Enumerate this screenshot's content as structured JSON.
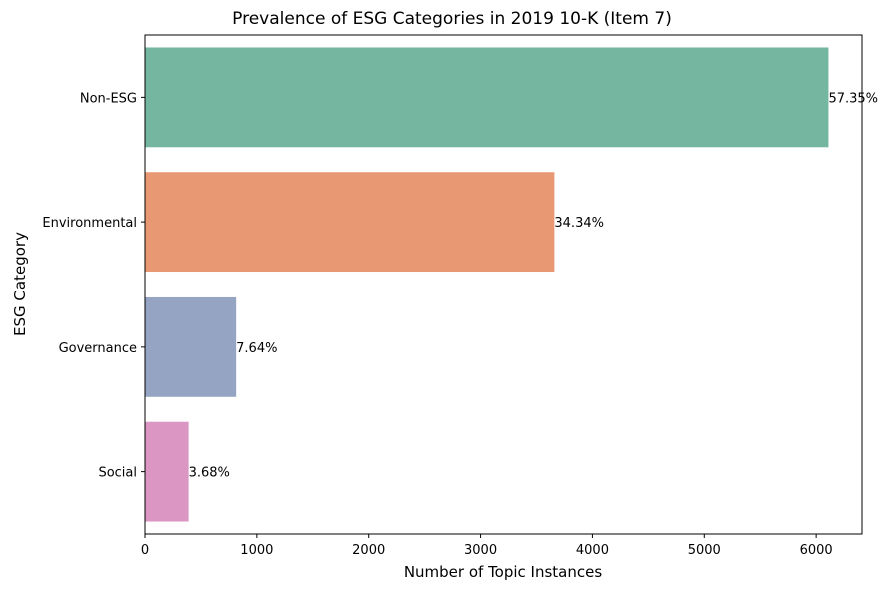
{
  "chart_data": {
    "type": "bar",
    "orientation": "horizontal",
    "title": "Prevalence of ESG Categories in 2019 10-K (Item 7)",
    "xlabel": "Number of Topic Instances",
    "ylabel": "ESG Category",
    "xlim": [
      0,
      6410
    ],
    "xticks": [
      0,
      1000,
      2000,
      3000,
      4000,
      5000,
      6000
    ],
    "categories": [
      "Non-ESG",
      "Environmental",
      "Governance",
      "Social"
    ],
    "values": [
      6110,
      3660,
      815,
      390
    ],
    "data_labels": [
      "57.35%",
      "34.34%",
      "7.64%",
      "3.68%"
    ],
    "colors": [
      "#75b6a0",
      "#e99874",
      "#95a4c2",
      "#dc96c3"
    ],
    "grid": false,
    "legend": "none"
  }
}
